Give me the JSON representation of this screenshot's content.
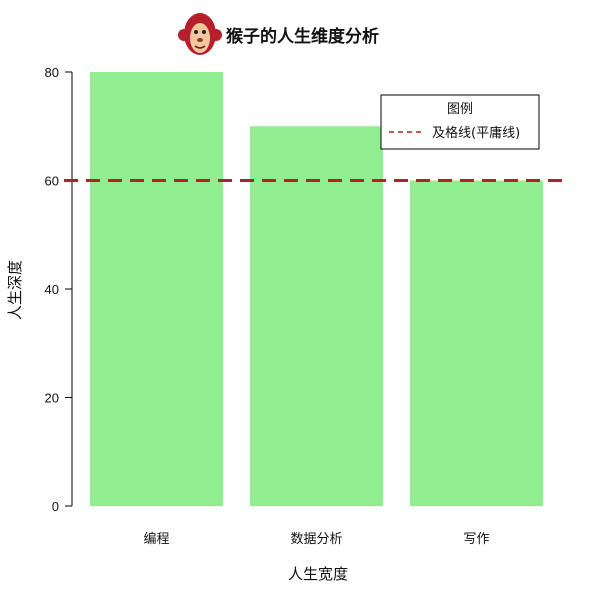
{
  "chart_data": {
    "type": "bar",
    "title": "猴子的人生维度分析",
    "xlabel": "人生宽度",
    "ylabel": "人生深度",
    "categories": [
      "编程",
      "数据分析",
      "写作"
    ],
    "values": [
      80,
      70,
      60
    ],
    "ylim": [
      0,
      80
    ],
    "yticks": [
      "0",
      "20",
      "40",
      "60",
      "80"
    ],
    "bar_color": "#90ee90",
    "grid": false,
    "legend": {
      "title": "图例",
      "placement": "top-right",
      "entries": [
        {
          "label": "及格线(平庸线)",
          "line_style": "dashed",
          "color": "#b22222"
        }
      ]
    },
    "reference_line": {
      "y": 60,
      "style": "dashed",
      "color": "#b22222"
    }
  },
  "logo": {
    "icon": "monkey-face-icon",
    "colors": {
      "fur": "#b5202b",
      "face": "#f2c79e"
    }
  }
}
